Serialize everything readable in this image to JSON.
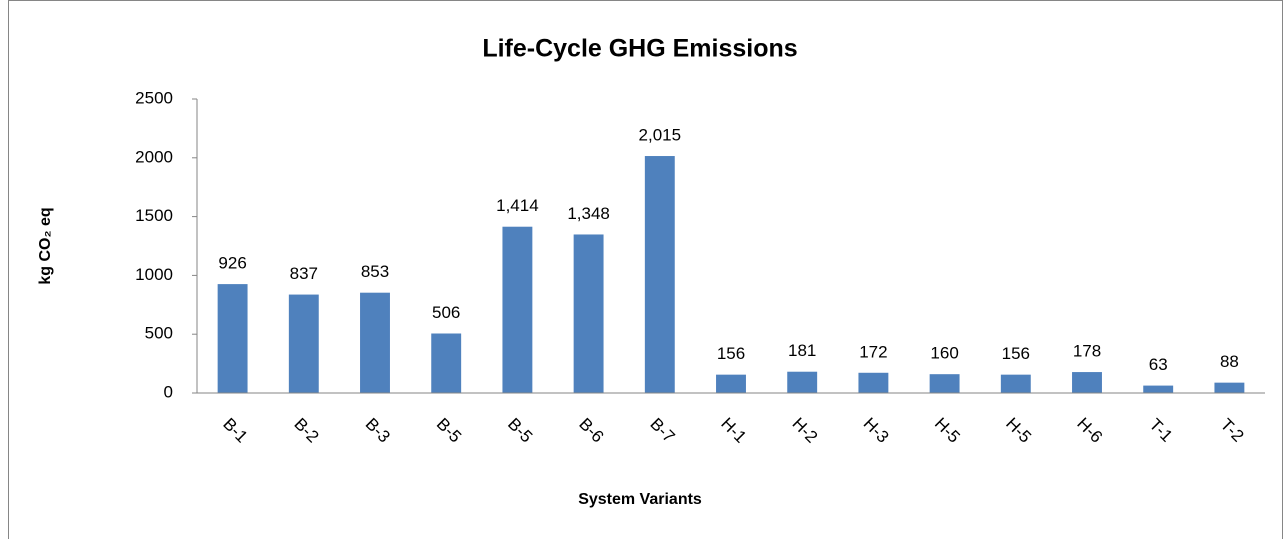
{
  "chart_data": {
    "type": "bar",
    "title": "Life-Cycle GHG Emissions",
    "x_label": "System Variants",
    "y_label": "kg CO₂ eq",
    "categories": [
      "B-1",
      "B-2",
      "B-3",
      "B-5",
      "B-5",
      "B-6",
      "B-7",
      "H-1",
      "H-2",
      "H-3",
      "H-5",
      "H-5",
      "H-6",
      "T-1",
      "T-2"
    ],
    "values": [
      926,
      837,
      853,
      506,
      1414,
      1348,
      2015,
      156,
      181,
      172,
      160,
      156,
      178,
      63,
      88
    ],
    "value_labels": [
      "926",
      "837",
      "853",
      "506",
      "1,414",
      "1,348",
      "2,015",
      "156",
      "181",
      "172",
      "160",
      "156",
      "178",
      "63",
      "88"
    ],
    "color": "#4f81bd",
    "ylim": [
      0,
      2500
    ],
    "yticks": [
      0,
      500,
      1000,
      1500,
      2000,
      2500
    ],
    "grid": false
  }
}
